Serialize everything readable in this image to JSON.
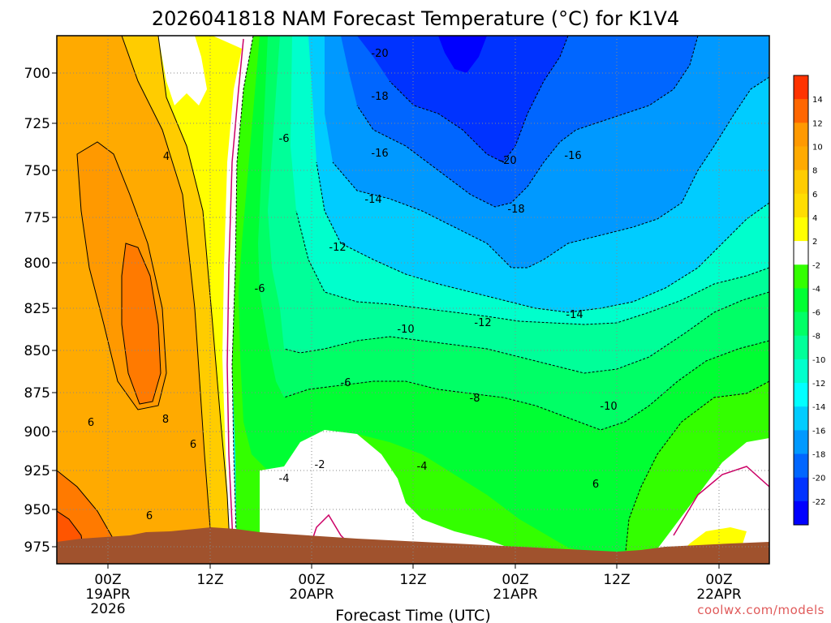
{
  "chart_data": {
    "type": "heatmap",
    "title": "2026041818 NAM Forecast Temperature (°C) for K1V4",
    "xlabel": "Forecast Time (UTC)",
    "ylabel": "",
    "credit": "coolwx.com/models",
    "y_ticks": [
      "700",
      "725",
      "750",
      "775",
      "800",
      "825",
      "850",
      "875",
      "900",
      "925",
      "950",
      "975"
    ],
    "ylim": [
      683,
      985
    ],
    "x_ticks": [
      {
        "l1": "00Z",
        "l2": "19APR",
        "l3": "2026"
      },
      {
        "l1": "12Z",
        "l2": "",
        "l3": ""
      },
      {
        "l1": "00Z",
        "l2": "20APR",
        "l3": ""
      },
      {
        "l1": "12Z",
        "l2": "",
        "l3": ""
      },
      {
        "l1": "00Z",
        "l2": "21APR",
        "l3": ""
      },
      {
        "l1": "12Z",
        "l2": "",
        "l3": ""
      },
      {
        "l1": "00Z",
        "l2": "22APR",
        "l3": ""
      }
    ],
    "colorbar": {
      "labels": [
        "14",
        "12",
        "10",
        "8",
        "6",
        "4",
        "2",
        "-2",
        "-4",
        "-6",
        "-8",
        "-10",
        "-12",
        "-14",
        "-16",
        "-18",
        "-20",
        "-22"
      ],
      "colors": [
        "#ff3300",
        "#ff6600",
        "#ff9900",
        "#ffaa00",
        "#ffcc00",
        "#ffdd00",
        "#ffff00",
        "#ffffff",
        "#33ff00",
        "#00ff33",
        "#00ff66",
        "#00ff99",
        "#00ffcc",
        "#00ffff",
        "#00ccff",
        "#0099ff",
        "#0066ff",
        "#0033ff",
        "#0000ff"
      ]
    },
    "contour_labels": [
      "-20",
      "-18",
      "-16",
      "-14",
      "-12",
      "-10",
      "-8",
      "-6",
      "-4",
      "-2",
      "4",
      "6",
      "8",
      "-20",
      "-18",
      "-16",
      "-14",
      "-12",
      "-10",
      "-6",
      "-6",
      "-4",
      "6",
      "6",
      "6"
    ]
  }
}
